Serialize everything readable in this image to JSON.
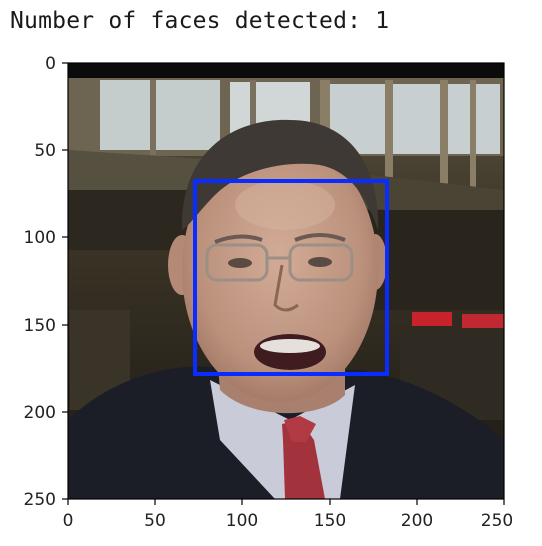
{
  "output": {
    "text": "Number of faces detected: 1"
  },
  "image": {
    "subject": "man in dark suit with white shirt and red tie, speaking, glasses, indoor terminal background",
    "colors": {
      "top_bar": "#0b0b0b",
      "background_dark": "#2a241c",
      "background_mid": "#4d4535",
      "windows": "#c9d2d2",
      "frame": "#6f6350",
      "suit": "#1b1e27",
      "shirt": "#c9cbd9",
      "tie": "#a2333c",
      "skin": "#c39a86",
      "hair": "#3e3934",
      "sign": "#c8232d"
    }
  },
  "detection": {
    "box_color": "#0a2cff",
    "box_x_range": [
      73,
      183
    ],
    "box_y_range": [
      68,
      178
    ]
  },
  "axes": {
    "xlim": [
      0,
      250
    ],
    "ylim": [
      250,
      0
    ],
    "x_ticks": [
      "0",
      "50",
      "100",
      "150",
      "200",
      "250"
    ],
    "y_ticks": [
      "0",
      "50",
      "100",
      "150",
      "200",
      "250"
    ]
  }
}
